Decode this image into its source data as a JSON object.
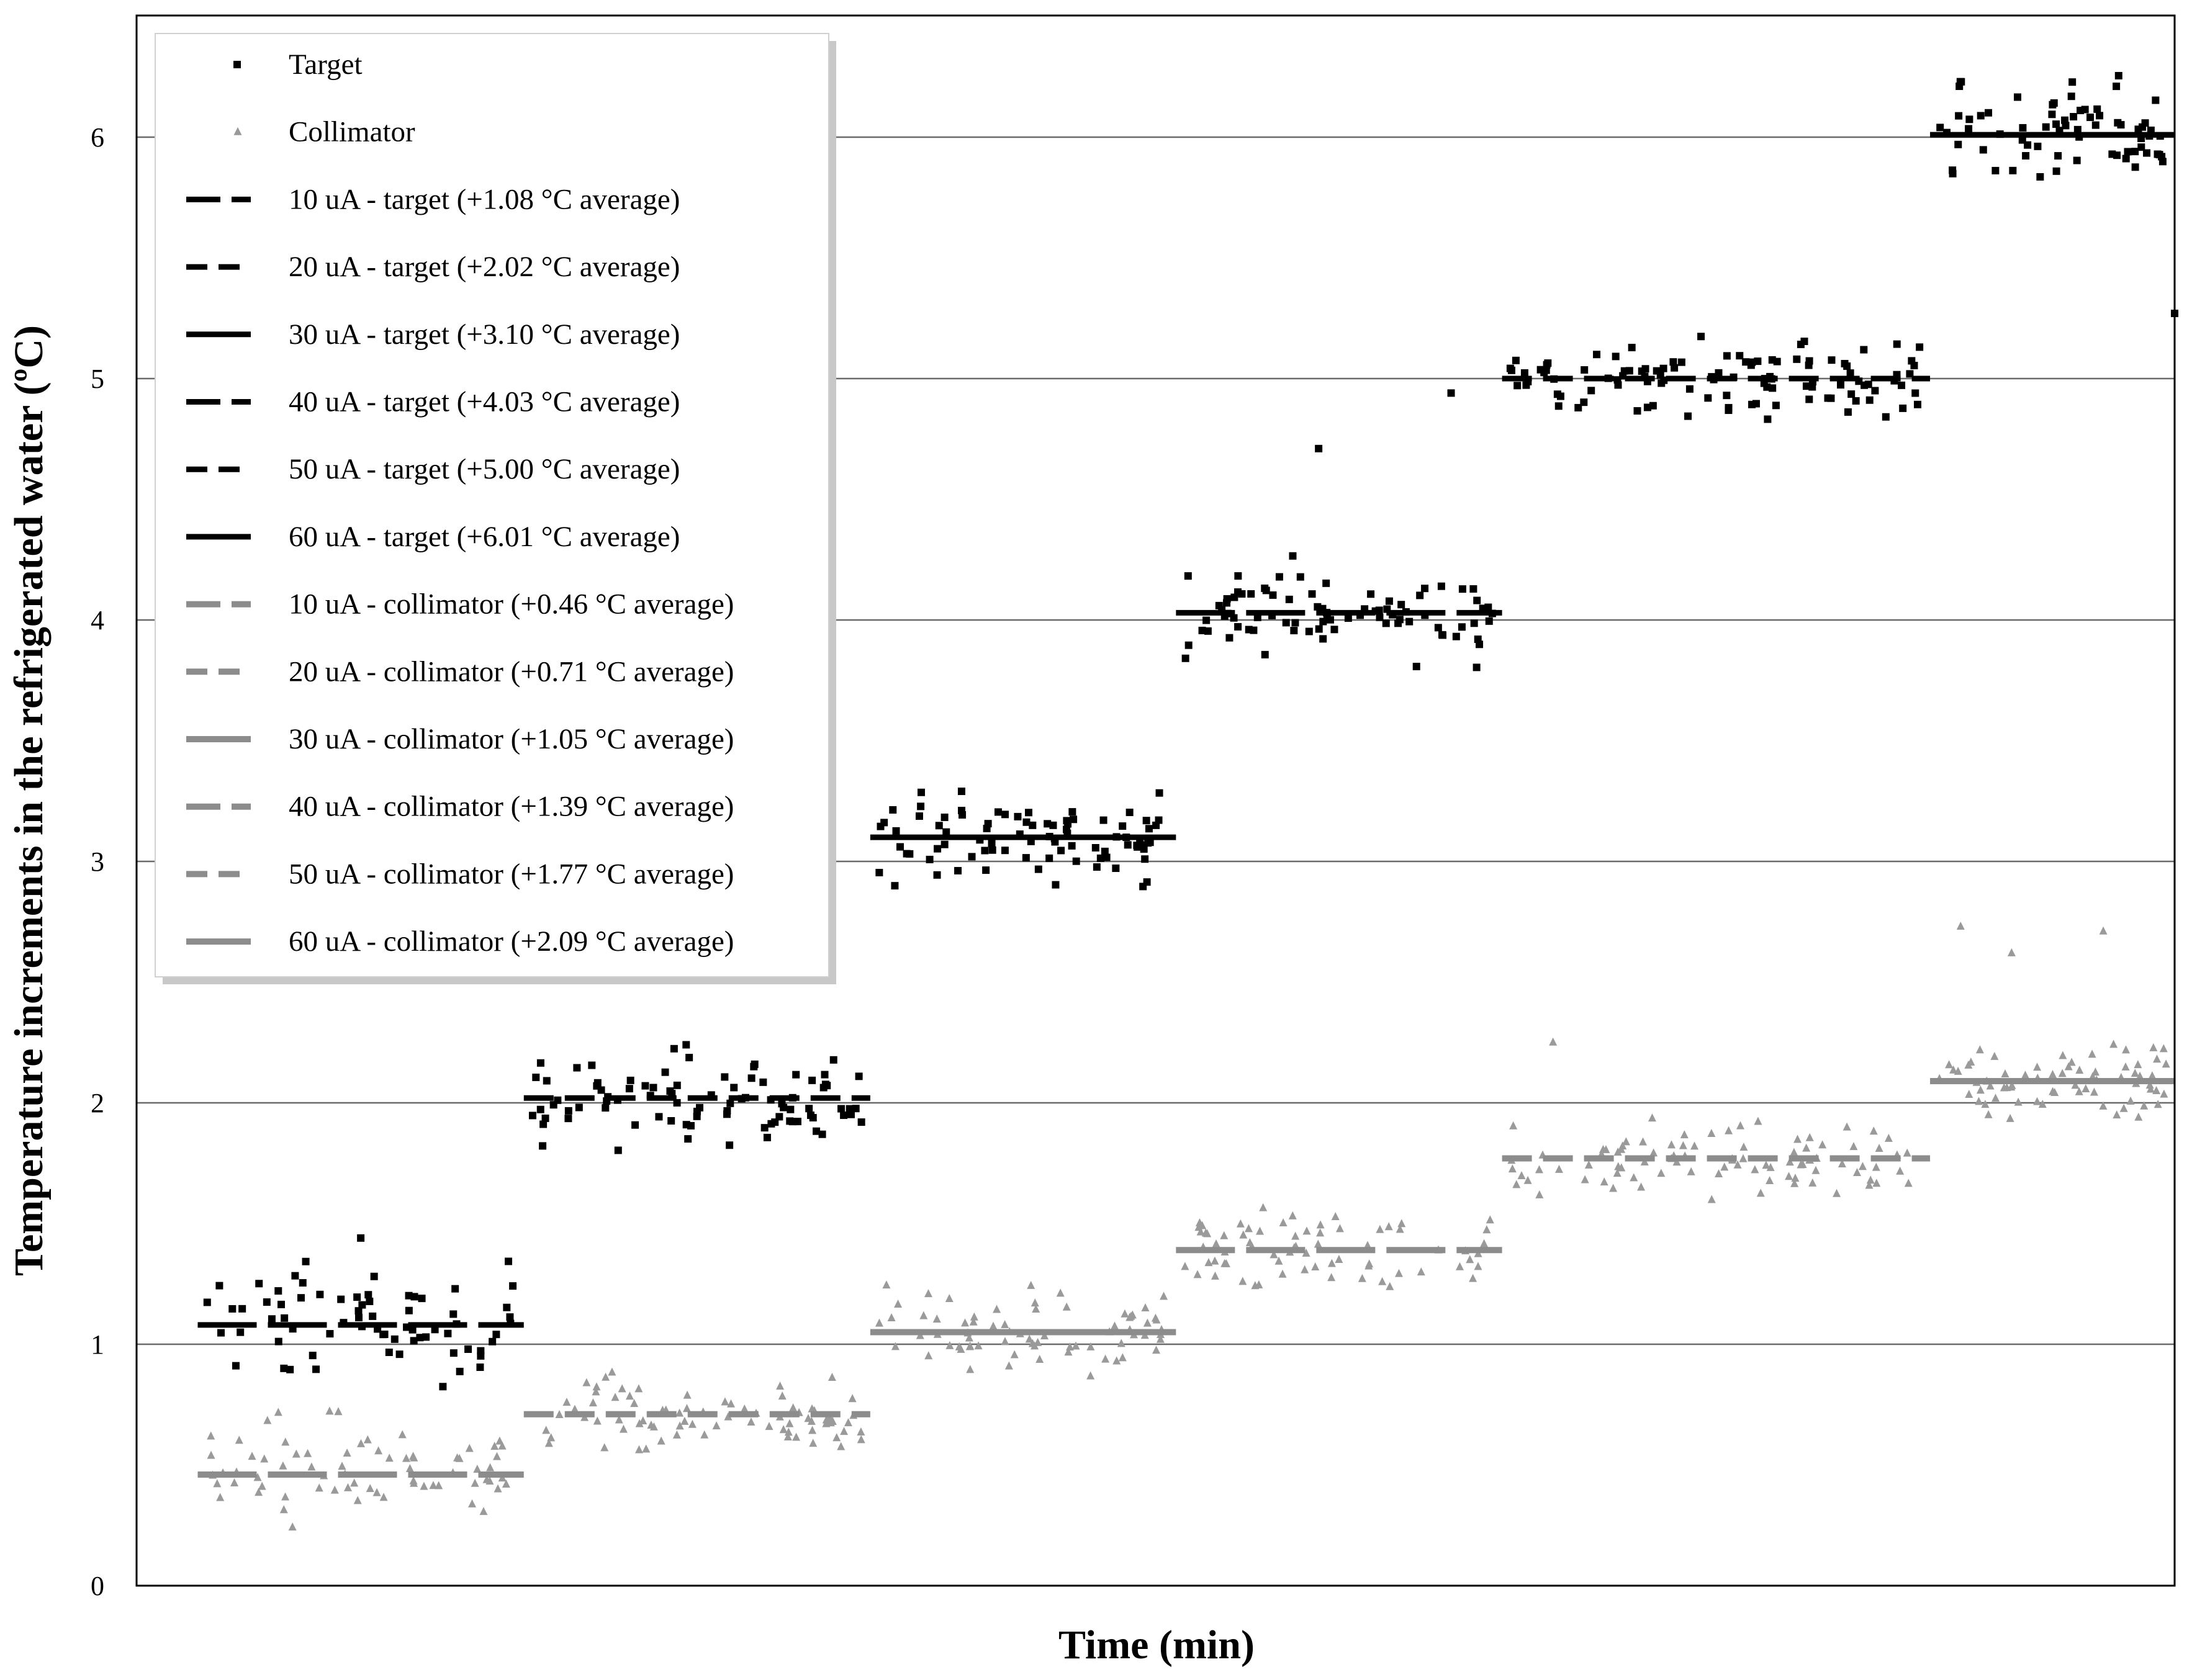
{
  "chart_data": {
    "type": "scatter",
    "title": "",
    "xlabel": "Time (min)",
    "ylabel": "Temperature increments in the refrigerated water (ºC)",
    "ylim": [
      0,
      6.5
    ],
    "xlim": [
      0,
      100
    ],
    "yticks": [
      "0",
      "1",
      "2",
      "3",
      "4",
      "5",
      "6"
    ],
    "grid": "horizontal",
    "legend_position": "top-left",
    "series": [
      {
        "name": "Target",
        "kind": "scatter",
        "marker": "square",
        "color": "#000000"
      },
      {
        "name": "Collimator",
        "kind": "scatter",
        "marker": "triangle",
        "color": "#9a9a9a"
      },
      {
        "name": "10 uA - target (+1.08 °C average)",
        "kind": "level",
        "value": 1.08,
        "x_range": [
          3,
          19
        ],
        "color": "#000000",
        "dash": "long"
      },
      {
        "name": "20 uA - target (+2.02 °C average)",
        "kind": "level",
        "value": 2.02,
        "x_range": [
          19,
          36
        ],
        "color": "#000000",
        "dash": "medium"
      },
      {
        "name": "30 uA - target (+3.10 °C average)",
        "kind": "level",
        "value": 3.1,
        "x_range": [
          36,
          51
        ],
        "color": "#000000",
        "dash": "solid"
      },
      {
        "name": "40 uA - target (+4.03 °C average)",
        "kind": "level",
        "value": 4.03,
        "x_range": [
          51,
          67
        ],
        "color": "#000000",
        "dash": "long"
      },
      {
        "name": "50 uA - target (+5.00 °C average)",
        "kind": "level",
        "value": 5.0,
        "x_range": [
          67,
          88
        ],
        "color": "#000000",
        "dash": "medium"
      },
      {
        "name": "60 uA - target (+6.01 °C average)",
        "kind": "level",
        "value": 6.01,
        "x_range": [
          88,
          100
        ],
        "color": "#000000",
        "dash": "solid"
      },
      {
        "name": "10 uA - collimator (+0.46 °C average)",
        "kind": "level",
        "value": 0.46,
        "x_range": [
          3,
          19
        ],
        "color": "#8c8c8c",
        "dash": "long"
      },
      {
        "name": "20 uA - collimator (+0.71 °C average)",
        "kind": "level",
        "value": 0.71,
        "x_range": [
          19,
          36
        ],
        "color": "#8c8c8c",
        "dash": "medium"
      },
      {
        "name": "30 uA - collimator (+1.05 °C average)",
        "kind": "level",
        "value": 1.05,
        "x_range": [
          36,
          51
        ],
        "color": "#8c8c8c",
        "dash": "solid"
      },
      {
        "name": "40 uA - collimator (+1.39 °C average)",
        "kind": "level",
        "value": 1.39,
        "x_range": [
          51,
          67
        ],
        "color": "#8c8c8c",
        "dash": "long"
      },
      {
        "name": "50 uA - collimator (+1.77 °C average)",
        "kind": "level",
        "value": 1.77,
        "x_range": [
          67,
          88
        ],
        "color": "#8c8c8c",
        "dash": "medium"
      },
      {
        "name": "60 uA - collimator (+2.09 °C average)",
        "kind": "level",
        "value": 2.09,
        "x_range": [
          88,
          100
        ],
        "color": "#8c8c8c",
        "dash": "solid"
      }
    ],
    "scatter_clusters": [
      {
        "series": "Target",
        "x_range": [
          3,
          19
        ],
        "center": 1.08,
        "spread": 0.22,
        "count": 70
      },
      {
        "series": "Target",
        "x_range": [
          19,
          36
        ],
        "center": 2.02,
        "spread": 0.18,
        "count": 90
      },
      {
        "series": "Target",
        "x_range": [
          36,
          51
        ],
        "center": 3.1,
        "spread": 0.17,
        "count": 85
      },
      {
        "series": "Target",
        "x_range": [
          51,
          67
        ],
        "center": 4.03,
        "spread": 0.17,
        "count": 85
      },
      {
        "series": "Target",
        "x_range": [
          67,
          88
        ],
        "center": 5.0,
        "spread": 0.15,
        "count": 110
      },
      {
        "series": "Target",
        "x_range": [
          88,
          100
        ],
        "center": 6.01,
        "spread": 0.2,
        "count": 70
      },
      {
        "series": "Collimator",
        "x_range": [
          3,
          19
        ],
        "center": 0.46,
        "spread": 0.2,
        "count": 70
      },
      {
        "series": "Collimator",
        "x_range": [
          19,
          36
        ],
        "center": 0.71,
        "spread": 0.15,
        "count": 80
      },
      {
        "series": "Collimator",
        "x_range": [
          36,
          51
        ],
        "center": 1.05,
        "spread": 0.15,
        "count": 70
      },
      {
        "series": "Collimator",
        "x_range": [
          51,
          67
        ],
        "center": 1.39,
        "spread": 0.15,
        "count": 70
      },
      {
        "series": "Collimator",
        "x_range": [
          67,
          88
        ],
        "center": 1.77,
        "spread": 0.14,
        "count": 90
      },
      {
        "series": "Collimator",
        "x_range": [
          88,
          100
        ],
        "center": 2.09,
        "spread": 0.17,
        "count": 70
      }
    ],
    "annotations": [
      {
        "series": "Target",
        "x": 58,
        "y": 4.71
      },
      {
        "series": "Target",
        "x": 64.5,
        "y": 4.94
      },
      {
        "series": "Target",
        "x": 100,
        "y": 5.27
      },
      {
        "series": "Target",
        "x": 11,
        "y": 1.44
      },
      {
        "series": "Collimator",
        "x": 89.5,
        "y": 2.73
      },
      {
        "series": "Collimator",
        "x": 96.5,
        "y": 2.71
      },
      {
        "series": "Collimator",
        "x": 92,
        "y": 2.62
      },
      {
        "series": "Collimator",
        "x": 69.5,
        "y": 2.25
      }
    ]
  }
}
